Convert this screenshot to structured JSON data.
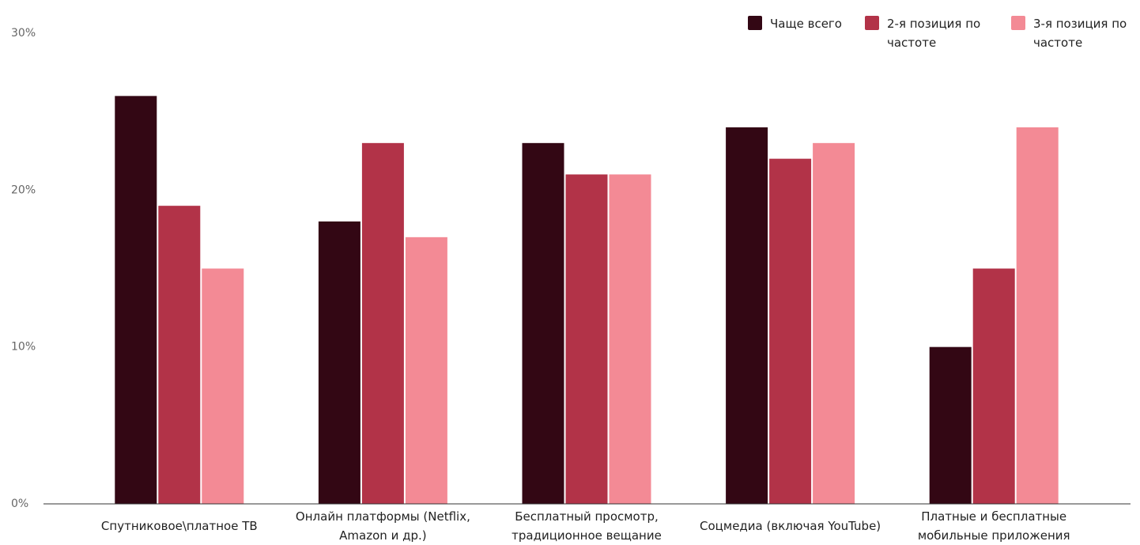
{
  "chart_data": {
    "type": "bar",
    "categories": [
      "Спутниковое\\платное ТВ",
      "Онлайн платформы (Netflix, Amazon и др.)",
      "Бесплатный просмотр, традиционное вещание",
      "Соцмедиа (включая YouTube)",
      "Платные и бесплатные мобильные приложения"
    ],
    "series": [
      {
        "name": "Чаще всего",
        "color": "#330714",
        "values": [
          26,
          18,
          23,
          24,
          10
        ]
      },
      {
        "name": "2-я позиция по частоте",
        "color": "#b23348",
        "values": [
          19,
          23,
          21,
          22,
          15
        ]
      },
      {
        "name": "3-я позиция по частоте",
        "color": "#f38a95",
        "values": [
          15,
          17,
          21,
          23,
          24
        ]
      }
    ],
    "ylim": [
      0,
      30
    ],
    "yticks": [
      {
        "value": 0,
        "label": "0%"
      },
      {
        "value": 10,
        "label": "10%"
      },
      {
        "value": 20,
        "label": "20%"
      },
      {
        "value": 30,
        "label": "30%"
      }
    ],
    "grid": false,
    "legend": "top-right"
  }
}
